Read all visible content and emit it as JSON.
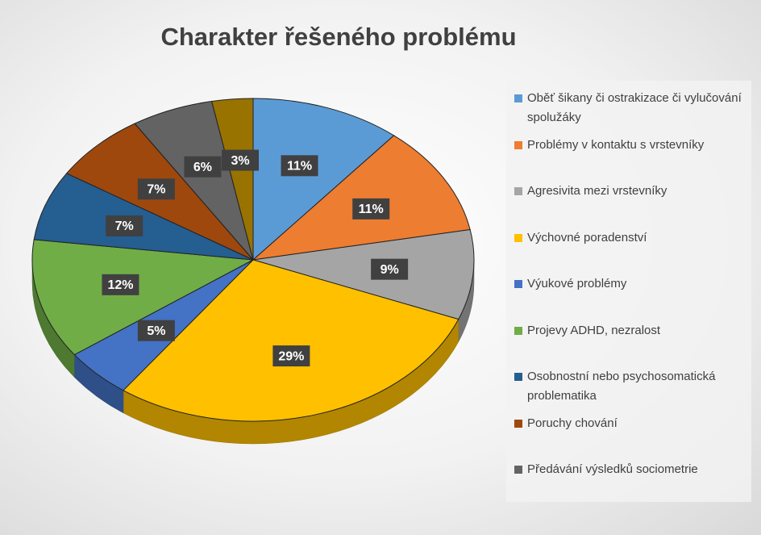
{
  "chart_data": {
    "type": "pie",
    "title": "Charakter řešeného problému",
    "categories": [
      "Oběť šikany či ostrakizace či vylučování spolužáky",
      "Problémy v kontaktu s vrstevníky",
      "Agresivita mezi vrstevníky",
      "Výchovné poradenství",
      "Výukové problémy",
      "Projevy ADHD, nezralost",
      "Osobnostní nebo psychosomatická problematika",
      "Poruchy chování",
      "Předávání výsledků sociometrie",
      null
    ],
    "values": [
      11,
      11,
      9,
      29,
      5,
      12,
      7,
      7,
      6,
      3
    ],
    "value_labels": [
      "11%",
      "11%",
      "9%",
      "29%",
      "5%",
      "12%",
      "7%",
      "7%",
      "6%",
      "3%"
    ],
    "colors": [
      "#5b9bd5",
      "#ed7d31",
      "#a5a5a5",
      "#ffc000",
      "#4472c4",
      "#70ad47",
      "#255e91",
      "#9e480e",
      "#636363",
      "#997300"
    ],
    "legend": "right"
  }
}
